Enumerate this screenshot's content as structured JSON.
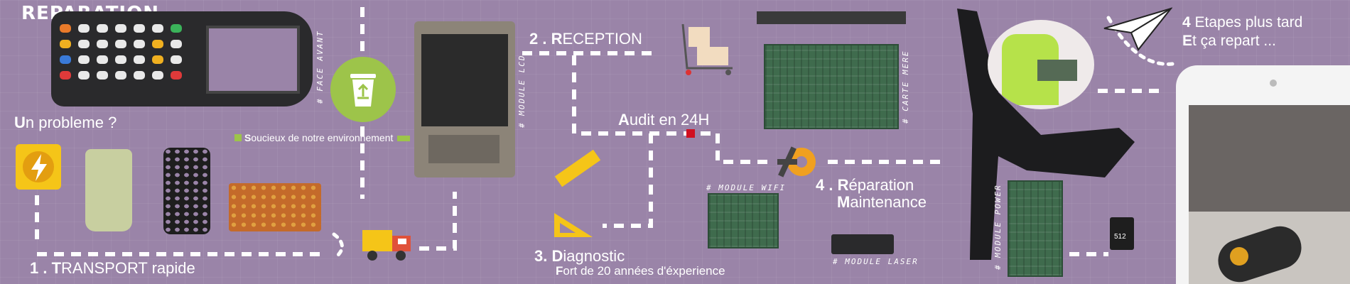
{
  "header": {
    "title": "REPARATION"
  },
  "intro": {
    "question_first": "U",
    "question_rest": "n probleme ?"
  },
  "eco": {
    "first": "S",
    "rest": "oucieux de notre environnement"
  },
  "steps": {
    "s1": {
      "num": "1 . ",
      "first": "T",
      "rest": "RANSPORT rapide"
    },
    "s2": {
      "num": "2 . ",
      "first": "R",
      "rest": "ECEPTION"
    },
    "audit": {
      "first": "A",
      "rest": "udit en 24H"
    },
    "s3": {
      "num": "3. ",
      "first": "D",
      "rest": "iagnostic",
      "sub_first": "F",
      "sub_rest": "ort de 20 années d'éxperience"
    },
    "s4": {
      "num": "4 . ",
      "first": "R",
      "rest": "éparation",
      "line2_first": "M",
      "line2_rest": "aintenance"
    },
    "final": {
      "line1_first": "4",
      "line1_rest": " Etapes plus tard",
      "line2_first": "E",
      "line2_rest": "t ça repart ..."
    }
  },
  "tags": {
    "face_avant": "# FACE AVANT",
    "module_lcd": "# MODULE LCD",
    "carte_mere": "# CARTE MERE",
    "module_wifi": "# MODULE WIFI",
    "module_laser": "# MODULE LASER",
    "module_power": "# MODULE POWER"
  },
  "sd_card": {
    "label": "512"
  },
  "colors": {
    "background": "#9a84a8",
    "recycle": "#9dc44a",
    "accent_yellow": "#f5c518",
    "truck_red": "#e0523a",
    "gear_orange": "#f0a020",
    "dot_red": "#d01020"
  },
  "icons": [
    "lightning-icon",
    "recycle-bin-icon",
    "truck-icon",
    "boxes-cart-icon",
    "ruler-icon",
    "set-square-icon",
    "gear-wrench-icon",
    "paper-plane-icon"
  ]
}
